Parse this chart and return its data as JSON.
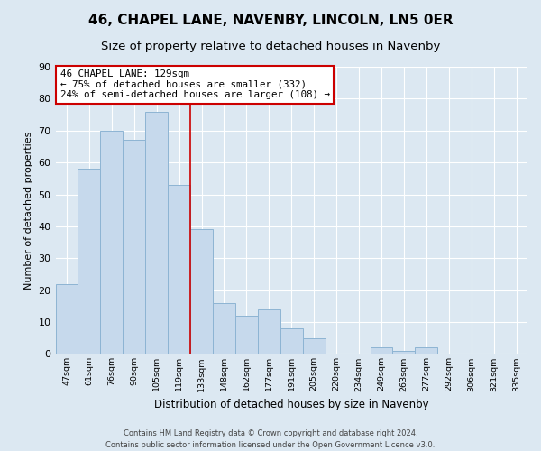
{
  "title": "46, CHAPEL LANE, NAVENBY, LINCOLN, LN5 0ER",
  "subtitle": "Size of property relative to detached houses in Navenby",
  "xlabel": "Distribution of detached houses by size in Navenby",
  "ylabel": "Number of detached properties",
  "bar_labels": [
    "47sqm",
    "61sqm",
    "76sqm",
    "90sqm",
    "105sqm",
    "119sqm",
    "133sqm",
    "148sqm",
    "162sqm",
    "177sqm",
    "191sqm",
    "205sqm",
    "220sqm",
    "234sqm",
    "249sqm",
    "263sqm",
    "277sqm",
    "292sqm",
    "306sqm",
    "321sqm",
    "335sqm"
  ],
  "bar_values": [
    22,
    58,
    70,
    67,
    76,
    53,
    39,
    16,
    12,
    14,
    8,
    5,
    0,
    0,
    2,
    1,
    2,
    0,
    0,
    0,
    0
  ],
  "bar_color": "#c6d9ec",
  "bar_edge_color": "#8db4d3",
  "vline_x": 5.5,
  "vline_color": "#cc0000",
  "ylim": [
    0,
    90
  ],
  "yticks": [
    0,
    10,
    20,
    30,
    40,
    50,
    60,
    70,
    80,
    90
  ],
  "annotation_title": "46 CHAPEL LANE: 129sqm",
  "annotation_line1": "← 75% of detached houses are smaller (332)",
  "annotation_line2": "24% of semi-detached houses are larger (108) →",
  "annotation_box_color": "#ffffff",
  "annotation_box_edge": "#cc0000",
  "footer_line1": "Contains HM Land Registry data © Crown copyright and database right 2024.",
  "footer_line2": "Contains public sector information licensed under the Open Government Licence v3.0.",
  "background_color": "#dce8f2",
  "grid_color": "#ffffff",
  "title_fontsize": 11,
  "subtitle_fontsize": 9.5
}
